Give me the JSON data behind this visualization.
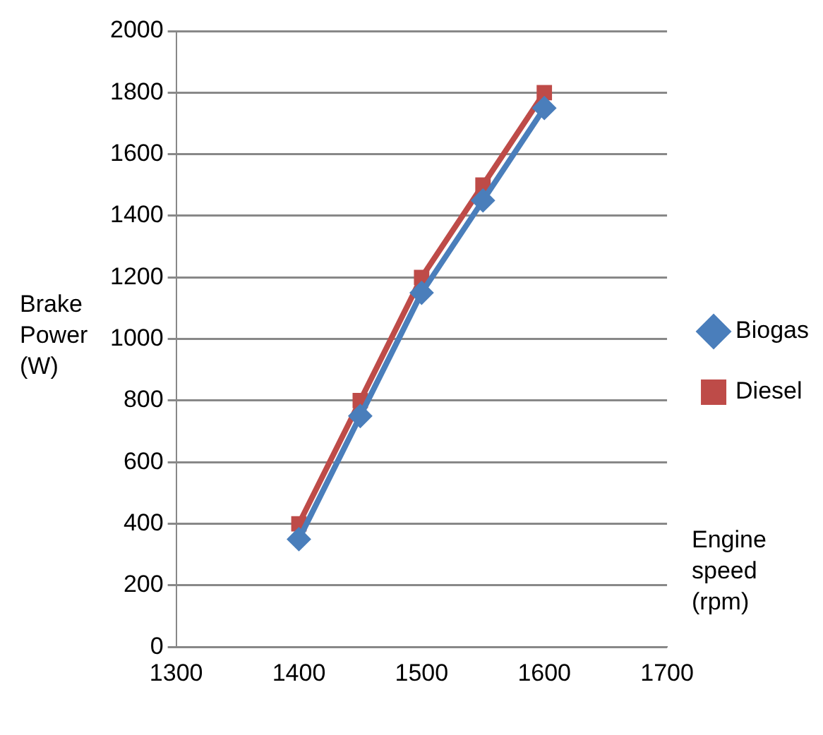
{
  "chart_data": {
    "type": "line",
    "xlabel": "Engine speed (rpm)",
    "ylabel": "Brake Power (W)",
    "x": [
      1400,
      1450,
      1500,
      1550,
      1600
    ],
    "series": [
      {
        "name": "Biogas",
        "color": "#4a7ebb",
        "values": [
          350,
          750,
          1150,
          1450,
          1750
        ],
        "marker": "diamond"
      },
      {
        "name": "Diesel",
        "color": "#be4b48",
        "values": [
          400,
          800,
          1200,
          1500,
          1800
        ],
        "marker": "square"
      }
    ],
    "xlim": [
      1300,
      1700
    ],
    "xticks": [
      1300,
      1400,
      1500,
      1600,
      1700
    ],
    "ylim": [
      0,
      2000
    ],
    "yticks": [
      0,
      200,
      400,
      600,
      800,
      1000,
      1200,
      1400,
      1600,
      1800,
      2000
    ],
    "grid": "y",
    "legend": "right"
  }
}
